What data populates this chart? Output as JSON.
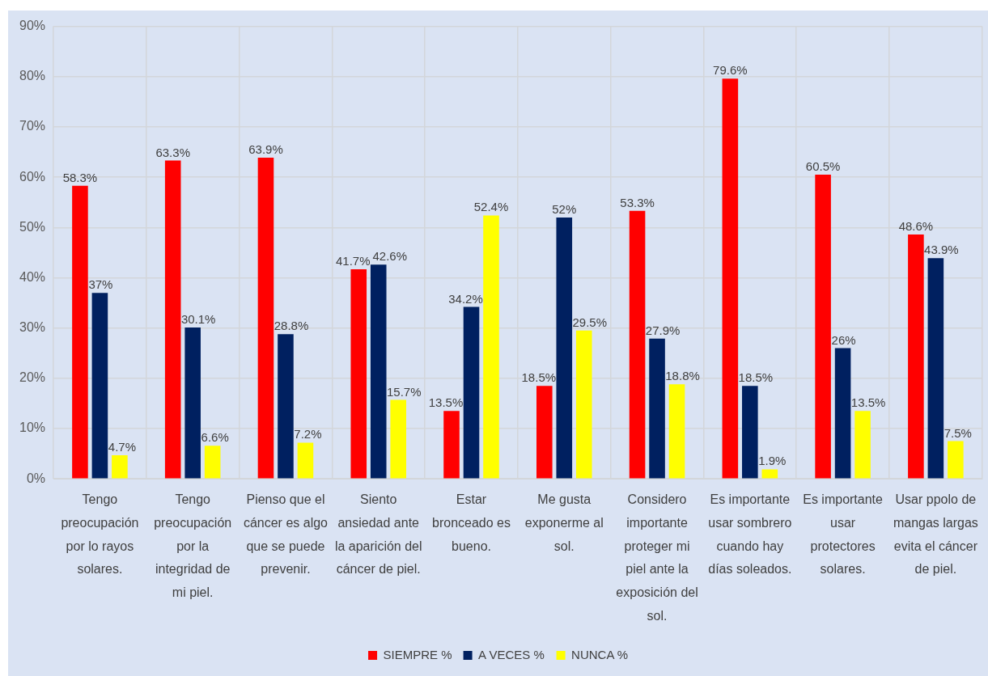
{
  "chart_data": {
    "type": "bar",
    "categories": [
      "Tengo preocupación por lo rayos solares.",
      "Tengo preocupación por la integridad de mi piel.",
      "Pienso que el cáncer es algo que se puede prevenir.",
      "Siento ansiedad ante la aparición del cáncer de piel.",
      "Estar bronceado es bueno.",
      "Me gusta exponerme al sol.",
      "Considero importante proteger mi piel ante la exposición del sol.",
      "Es importante usar sombrero cuando hay días soleados.",
      "Es importante usar protectores solares.",
      "Usar ppolo de mangas largas evita el cáncer de piel."
    ],
    "series": [
      {
        "name": "SIEMPRE %",
        "color": "#ff0000",
        "values": [
          58.3,
          63.3,
          63.9,
          41.7,
          13.5,
          18.5,
          53.3,
          79.6,
          60.5,
          48.6
        ],
        "value_labels": [
          "58.3%",
          "63.3%",
          "63.9%",
          "41.7%",
          "13.5%",
          "18.5%",
          "53.3%",
          "79.6%",
          "60.5%",
          "48.6%"
        ]
      },
      {
        "name": "A VECES %",
        "color": "#002060",
        "values": [
          37,
          30.1,
          28.8,
          42.6,
          34.2,
          52,
          27.9,
          18.5,
          26,
          43.9
        ],
        "value_labels": [
          "37%",
          "30.1%",
          "28.8%",
          "42.6%",
          "34.2%",
          "52%",
          "27.9%",
          "18.5%",
          "26%",
          "43.9%"
        ]
      },
      {
        "name": "NUNCA %",
        "color": "#ffff00",
        "values": [
          4.7,
          6.6,
          7.2,
          15.7,
          52.4,
          29.5,
          18.8,
          1.9,
          13.5,
          7.5
        ],
        "value_labels": [
          "4.7%",
          "6.6%",
          "7.2%",
          "15.7%",
          "52.4%",
          "29.5%",
          "18.8%",
          "1.9%",
          "13.5%",
          "7.5%"
        ]
      }
    ],
    "ylim": [
      0,
      90
    ],
    "yticks": [
      {
        "value": 0,
        "label": "0%"
      },
      {
        "value": 10,
        "label": "10%"
      },
      {
        "value": 20,
        "label": "20%"
      },
      {
        "value": 30,
        "label": "30%"
      },
      {
        "value": 40,
        "label": "40%"
      },
      {
        "value": 50,
        "label": "50%"
      },
      {
        "value": 60,
        "label": "60%"
      },
      {
        "value": 70,
        "label": "70%"
      },
      {
        "value": 80,
        "label": "80%"
      },
      {
        "value": 90,
        "label": "90%"
      }
    ],
    "grid": true,
    "legend": "bottom"
  }
}
